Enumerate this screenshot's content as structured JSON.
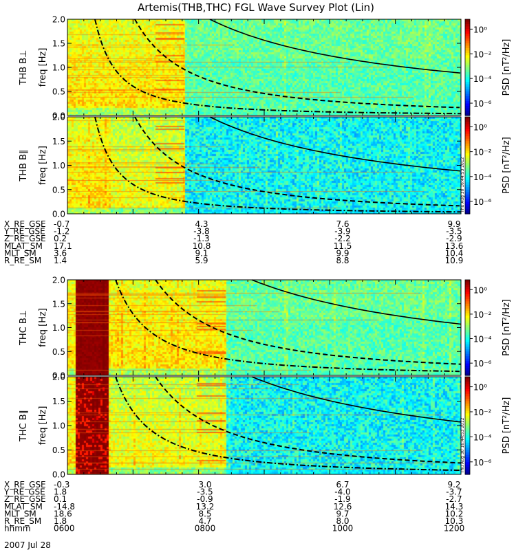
{
  "chart_data": {
    "type": "heatmap",
    "title": "Artemis(THB,THC) FGL Wave Survey Plot (Lin)",
    "colorbar_label": "PSD [nT²/Hz]",
    "colorbar_ticks": [
      "10⁰",
      "10⁻²",
      "10⁻⁴",
      "10⁻⁶"
    ],
    "colorbar_exponents": [
      0,
      -2,
      -4,
      -6
    ],
    "ylim": [
      0,
      2.0
    ],
    "y_ticks": [
      "0.0",
      "0.5",
      "1.0",
      "1.5",
      "2.0"
    ],
    "y_tick_values": [
      0,
      0.5,
      1.0,
      1.5,
      2.0
    ],
    "panels": [
      {
        "name": "THB B⊥",
        "ylabel": "freq [Hz]"
      },
      {
        "name": "THB B∥",
        "ylabel": "freq [Hz]"
      },
      {
        "name": "THC B⊥",
        "ylabel": "freq [Hz]"
      },
      {
        "name": "THC B∥",
        "ylabel": "freq [Hz]"
      }
    ],
    "stamp": "Thu Aug 30 16:44:53 2012",
    "orbit_blocks": [
      {
        "rows": [
          {
            "label": "X_RE_GSE",
            "values": [
              "-0.7",
              "4.3",
              "7.6",
              "9.9"
            ]
          },
          {
            "label": "Y_RE_GSE",
            "values": [
              "-1.2",
              "-3.8",
              "-3.9",
              "-3.5"
            ]
          },
          {
            "label": "Z_RE_GSE",
            "values": [
              "0.2",
              "-1.3",
              "-2.2",
              "-2.9"
            ]
          },
          {
            "label": "MLAT_SM",
            "values": [
              "17.1",
              "10.8",
              "11.5",
              "13.6"
            ]
          },
          {
            "label": "MLT_SM",
            "values": [
              "3.6",
              "9.1",
              "9.9",
              "10.4"
            ]
          },
          {
            "label": "R_RE_SM",
            "values": [
              "1.4",
              "5.9",
              "8.8",
              "10.9"
            ]
          }
        ]
      },
      {
        "rows": [
          {
            "label": "X_RE_GSE",
            "values": [
              "-0.3",
              "3.0",
              "6.7",
              "9.2"
            ]
          },
          {
            "label": "Y_RE_GSE",
            "values": [
              "1.8",
              "-3.5",
              "-4.0",
              "-3.7"
            ]
          },
          {
            "label": "Z_RE_GSE",
            "values": [
              "0.1",
              "-0.9",
              "-1.9",
              "-2.7"
            ]
          },
          {
            "label": "MLAT_SM",
            "values": [
              "-14.8",
              "13.2",
              "12.6",
              "14.3"
            ]
          },
          {
            "label": "MLT_SM",
            "values": [
              "18.6",
              "8.5",
              "9.7",
              "10.2"
            ]
          },
          {
            "label": "R_RE_SM",
            "values": [
              "1.8",
              "4.7",
              "8.0",
              "10.3"
            ]
          },
          {
            "label": "hhmm",
            "values": [
              "0600",
              "0800",
              "1000",
              "1200"
            ]
          }
        ]
      }
    ],
    "date": "2007 Jul 28"
  }
}
